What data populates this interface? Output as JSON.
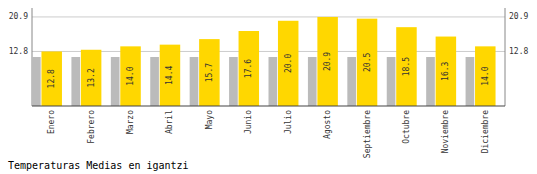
{
  "chart_data": {
    "type": "bar",
    "title": "Temperaturas Medias en igantzi",
    "categories": [
      "Enero",
      "Febrero",
      "Marzo",
      "Abril",
      "Mayo",
      "Junio",
      "Julio",
      "Agosto",
      "Septiembre",
      "Octubre",
      "Noviembre",
      "Diciembre"
    ],
    "series": [
      {
        "color": "#BBBBBB",
        "values": [
          11.5,
          11.5,
          11.5,
          11.5,
          11.5,
          11.5,
          11.5,
          11.5,
          11.5,
          11.5,
          11.5,
          11.5
        ]
      },
      {
        "color": "#FFD700",
        "data_labels": true,
        "values": [
          12.8,
          13.2,
          14.0,
          14.4,
          15.7,
          17.6,
          20.0,
          20.9,
          20.5,
          18.5,
          16.3,
          14.0
        ],
        "value_labels": [
          "12.8",
          "13.2",
          "14.0",
          "14.4",
          "15.7",
          "17.6",
          "20.0",
          "20.9",
          "20.5",
          "18.5",
          "16.3",
          "14.0"
        ]
      }
    ],
    "ylim": [
      0,
      23.0
    ],
    "yticks": [
      12.8,
      20.9
    ],
    "y2lim": [
      0,
      23.0
    ],
    "y2ticks": [
      12.8,
      20.9
    ],
    "grid": true
  }
}
